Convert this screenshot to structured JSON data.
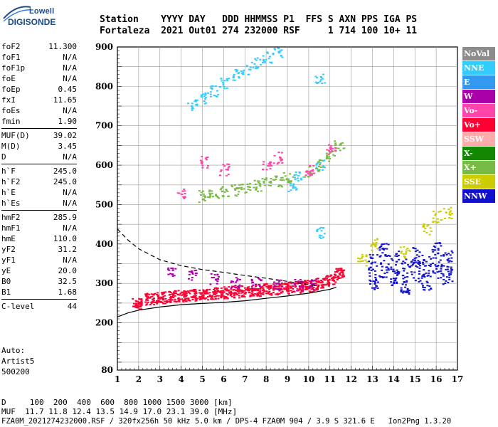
{
  "logo": {
    "line1": "Lowell",
    "line2": "DIGISONDE"
  },
  "header": {
    "row1": "Station    YYYY DAY   DDD HHMMSS P1  FFS S AXN PPS IGA PS",
    "row2": "Fortaleza  2021 Out01 274 232000 RSF     1 714 100 10+ 11"
  },
  "params": {
    "group1": [
      {
        "k": "foF2",
        "v": "11.300"
      },
      {
        "k": "foF1",
        "v": "N/A"
      },
      {
        "k": "foF1p",
        "v": "N/A"
      },
      {
        "k": "foE",
        "v": "N/A"
      },
      {
        "k": "foEp",
        "v": "0.45"
      },
      {
        "k": "fxI",
        "v": "11.65"
      },
      {
        "k": "foEs",
        "v": "N/A"
      },
      {
        "k": "fmin",
        "v": "1.90"
      }
    ],
    "group2": [
      {
        "k": "MUF(D)",
        "v": "39.02"
      },
      {
        "k": "M(D)",
        "v": "3.45"
      },
      {
        "k": "D",
        "v": "N/A"
      }
    ],
    "group3": [
      {
        "k": "h`F",
        "v": "245.0"
      },
      {
        "k": "h`F2",
        "v": "245.0"
      },
      {
        "k": "h`E",
        "v": "N/A"
      },
      {
        "k": "h`Es",
        "v": "N/A"
      }
    ],
    "group4": [
      {
        "k": "hmF2",
        "v": "285.9"
      },
      {
        "k": "hmF1",
        "v": "N/A"
      },
      {
        "k": "hmE",
        "v": "110.0"
      },
      {
        "k": "yF2",
        "v": "31.2"
      },
      {
        "k": "yF1",
        "v": "N/A"
      },
      {
        "k": "yE",
        "v": "20.0"
      },
      {
        "k": "B0",
        "v": "32.5"
      },
      {
        "k": "B1",
        "v": "1.68"
      }
    ],
    "group5": [
      {
        "k": "C-level",
        "v": "44"
      }
    ]
  },
  "auto": {
    "line1": "Auto:",
    "line2": "Artist5",
    "line3": "500200"
  },
  "legend": [
    {
      "label": "NoVal",
      "color": "#8c8c8c"
    },
    {
      "label": "NNE",
      "color": "#33ccff"
    },
    {
      "label": "E",
      "color": "#3399ee"
    },
    {
      "label": "W",
      "color": "#aa00aa"
    },
    {
      "label": "Vo-",
      "color": "#ff44aa"
    },
    {
      "label": "Vo+",
      "color": "#ff0033"
    },
    {
      "label": "SSW",
      "color": "#ffaaaa"
    },
    {
      "label": "X-",
      "color": "#118800"
    },
    {
      "label": "X+",
      "color": "#77bb44"
    },
    {
      "label": "SSE",
      "color": "#cccc00"
    },
    {
      "label": "NNW",
      "color": "#1111cc"
    }
  ],
  "footer": {
    "row1": "D     100  200  400  600  800 1000 1500 3000 [km]",
    "row2": "MUF  11.7 11.8 12.4 13.5 14.9 17.0 23.1 39.0 [MHz]",
    "row3": "FZA0M_2021274232000.RSF / 320fx256h 50 kHz 5.0 km / DPS-4 FZA0M 904 / 3.9 S 321.6 E   Ion2Png 1.3.20"
  },
  "chart_data": {
    "type": "scatter",
    "title": "",
    "xlabel": "",
    "ylabel": "",
    "xlim": [
      1,
      17
    ],
    "ylim": [
      80,
      900
    ],
    "x_ticks": [
      1,
      2,
      3,
      4,
      5,
      6,
      7,
      8,
      9,
      10,
      11,
      12,
      13,
      14,
      15,
      16,
      17
    ],
    "y_ticks": [
      80,
      200,
      300,
      400,
      500,
      600,
      700,
      800,
      900
    ],
    "grid": true,
    "series": [
      {
        "name": "Vo+",
        "color": "#ff0033",
        "points": [
          [
            1.9,
            250
          ],
          [
            2.5,
            262
          ],
          [
            3,
            265
          ],
          [
            3.5,
            268
          ],
          [
            4,
            270
          ],
          [
            4.5,
            272
          ],
          [
            5,
            274
          ],
          [
            5.5,
            276
          ],
          [
            6,
            278
          ],
          [
            6.5,
            280
          ],
          [
            7,
            282
          ],
          [
            7.5,
            284
          ],
          [
            8,
            286
          ],
          [
            8.5,
            288
          ],
          [
            9,
            290
          ],
          [
            9.5,
            292
          ],
          [
            10,
            295
          ],
          [
            10.5,
            300
          ],
          [
            11,
            310
          ],
          [
            11.4,
            325
          ]
        ]
      },
      {
        "name": "W",
        "color": "#aa00aa",
        "points": [
          [
            3.5,
            330
          ],
          [
            4.5,
            322
          ],
          [
            5.5,
            312
          ],
          [
            6.5,
            305
          ],
          [
            7.5,
            300
          ],
          [
            8.5,
            298
          ],
          [
            9.5,
            298
          ],
          [
            10.2,
            300
          ]
        ]
      },
      {
        "name": "NNE",
        "color": "#33ccff",
        "points": [
          [
            4.5,
            755
          ],
          [
            5,
            772
          ],
          [
            5.5,
            790
          ],
          [
            6,
            810
          ],
          [
            6.5,
            830
          ],
          [
            7,
            845
          ],
          [
            7.5,
            860
          ],
          [
            8,
            875
          ],
          [
            8.5,
            888
          ],
          [
            10.5,
            430
          ],
          [
            10.5,
            600
          ],
          [
            10.5,
            820
          ],
          [
            9.2,
            550
          ],
          [
            9.5,
            575
          ]
        ]
      },
      {
        "name": "X+",
        "color": "#77bb44",
        "points": [
          [
            5,
            522
          ],
          [
            5.5,
            527
          ],
          [
            6,
            532
          ],
          [
            6.5,
            537
          ],
          [
            7,
            542
          ],
          [
            7.5,
            548
          ],
          [
            8,
            555
          ],
          [
            8.5,
            562
          ],
          [
            9,
            570
          ],
          [
            10,
            585
          ],
          [
            10.5,
            600
          ],
          [
            11,
            625
          ],
          [
            11.4,
            650
          ]
        ]
      },
      {
        "name": "Vo-",
        "color": "#ff44aa",
        "points": [
          [
            4,
            530
          ],
          [
            5,
            610
          ],
          [
            6,
            590
          ],
          [
            8,
            605
          ],
          [
            8.5,
            620
          ],
          [
            10,
            590
          ],
          [
            11,
            640
          ]
        ]
      },
      {
        "name": "NNW",
        "color": "#1111cc",
        "points": [
          [
            13,
            330
          ],
          [
            13.5,
            360
          ],
          [
            14,
            340
          ],
          [
            14.5,
            320
          ],
          [
            15,
            350
          ],
          [
            15.5,
            330
          ],
          [
            16,
            360
          ],
          [
            16.5,
            340
          ]
        ]
      },
      {
        "name": "SSE",
        "color": "#cccc00",
        "points": [
          [
            12.5,
            360
          ],
          [
            13,
            400
          ],
          [
            14.5,
            380
          ],
          [
            15.5,
            440
          ],
          [
            16,
            470
          ],
          [
            16.5,
            480
          ]
        ]
      }
    ],
    "curves": [
      {
        "style": "solid",
        "points": [
          [
            1,
            215
          ],
          [
            1.5,
            225
          ],
          [
            2,
            232
          ],
          [
            3,
            240
          ],
          [
            4,
            246
          ],
          [
            5,
            249
          ],
          [
            6,
            252
          ],
          [
            7,
            256
          ],
          [
            8,
            262
          ],
          [
            9,
            268
          ],
          [
            10,
            275
          ],
          [
            10.5,
            280
          ],
          [
            11,
            285
          ],
          [
            11.3,
            290
          ]
        ]
      },
      {
        "style": "dashed",
        "points": [
          [
            1,
            438
          ],
          [
            1.5,
            410
          ],
          [
            2,
            388
          ],
          [
            3,
            360
          ],
          [
            4,
            345
          ],
          [
            5,
            335
          ],
          [
            6,
            328
          ],
          [
            7,
            320
          ],
          [
            8,
            313
          ],
          [
            9,
            305
          ],
          [
            10,
            297
          ],
          [
            10.5,
            293
          ]
        ]
      }
    ]
  }
}
